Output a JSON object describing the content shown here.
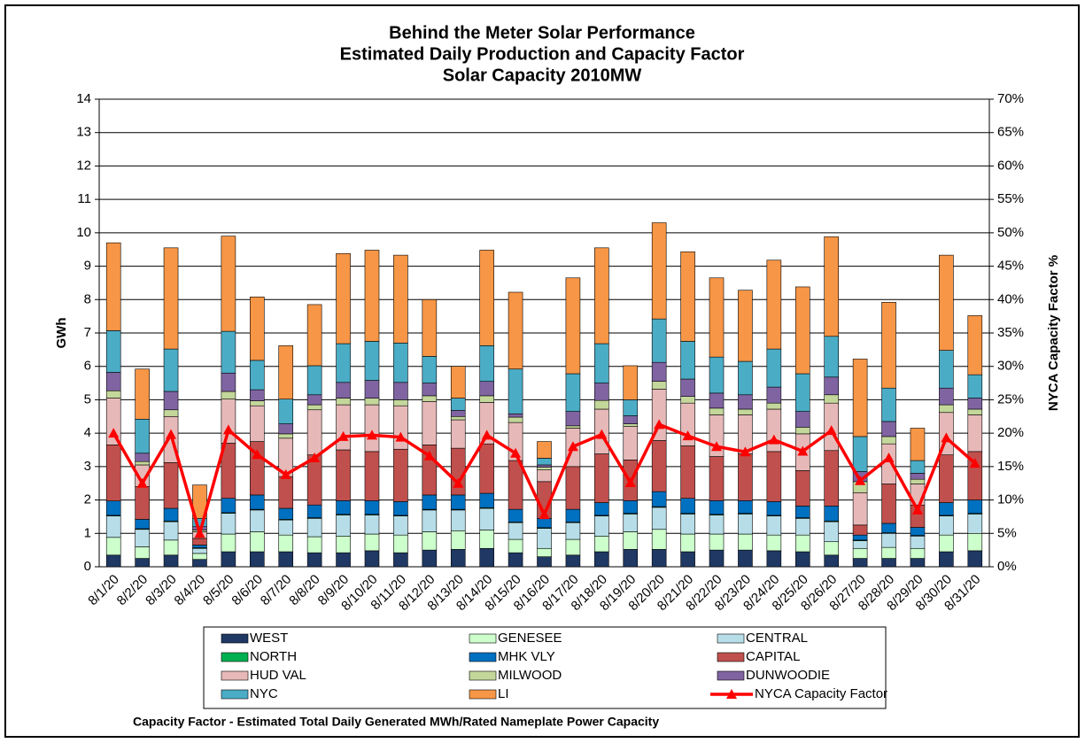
{
  "chart_data": {
    "type": "stacked_bar_line",
    "title": [
      "Behind the Meter Solar Performance",
      "Estimated Daily Production and Capacity Factor",
      "Solar Capacity 2010MW"
    ],
    "y_label": "GWh",
    "y2_label": "NYCA Capacity Factor %",
    "footnote": "Capacity Factor  - Estimated Total Daily Generated MWh/Rated Nameplate Power Capacity",
    "categories": [
      "8/1/20",
      "8/2/20",
      "8/3/20",
      "8/4/20",
      "8/5/20",
      "8/6/20",
      "8/7/20",
      "8/8/20",
      "8/9/20",
      "8/10/20",
      "8/11/20",
      "8/12/20",
      "8/13/20",
      "8/14/20",
      "8/15/20",
      "8/16/20",
      "8/17/20",
      "8/18/20",
      "8/19/20",
      "8/20/20",
      "8/21/20",
      "8/22/20",
      "8/23/20",
      "8/24/20",
      "8/25/20",
      "8/26/20",
      "8/27/20",
      "8/28/20",
      "8/29/20",
      "8/30/20",
      "8/31/20"
    ],
    "ylim": [
      0,
      14
    ],
    "yticks": [
      0,
      1,
      2,
      3,
      4,
      5,
      6,
      7,
      8,
      9,
      10,
      11,
      12,
      13,
      14
    ],
    "y2lim": [
      0,
      70
    ],
    "y2ticks": [
      {
        "value": 0,
        "label": "0%"
      },
      {
        "value": 5,
        "label": "5%"
      },
      {
        "value": 10,
        "label": "10%"
      },
      {
        "value": 15,
        "label": "15%"
      },
      {
        "value": 20,
        "label": "20%"
      },
      {
        "value": 25,
        "label": "25%"
      },
      {
        "value": 30,
        "label": "30%"
      },
      {
        "value": 35,
        "label": "35%"
      },
      {
        "value": 40,
        "label": "40%"
      },
      {
        "value": 45,
        "label": "45%"
      },
      {
        "value": 50,
        "label": "50%"
      },
      {
        "value": 55,
        "label": "55%"
      },
      {
        "value": 60,
        "label": "60%"
      },
      {
        "value": 65,
        "label": "65%"
      },
      {
        "value": 70,
        "label": "70%"
      }
    ],
    "grid": true,
    "series": [
      {
        "name": "WEST",
        "color": "#1f3864",
        "values": [
          0.35,
          0.25,
          0.35,
          0.22,
          0.45,
          0.45,
          0.45,
          0.42,
          0.42,
          0.48,
          0.42,
          0.5,
          0.52,
          0.55,
          0.42,
          0.3,
          0.35,
          0.45,
          0.52,
          0.52,
          0.45,
          0.5,
          0.5,
          0.48,
          0.45,
          0.35,
          0.25,
          0.25,
          0.25,
          0.45,
          0.48
        ]
      },
      {
        "name": "GENESEE",
        "color": "#ccffcc",
        "values": [
          0.53,
          0.35,
          0.45,
          0.18,
          0.53,
          0.6,
          0.5,
          0.48,
          0.5,
          0.5,
          0.53,
          0.55,
          0.56,
          0.55,
          0.4,
          0.25,
          0.47,
          0.47,
          0.53,
          0.6,
          0.53,
          0.48,
          0.48,
          0.47,
          0.5,
          0.4,
          0.3,
          0.33,
          0.3,
          0.5,
          0.52
        ]
      },
      {
        "name": "CENTRAL",
        "color": "#b7dee8",
        "values": [
          0.64,
          0.52,
          0.55,
          0.15,
          0.62,
          0.65,
          0.45,
          0.55,
          0.63,
          0.57,
          0.57,
          0.65,
          0.62,
          0.65,
          0.5,
          0.6,
          0.5,
          0.6,
          0.53,
          0.66,
          0.6,
          0.57,
          0.6,
          0.57,
          0.5,
          0.6,
          0.23,
          0.42,
          0.37,
          0.57,
          0.58
        ]
      },
      {
        "name": "NORTH",
        "color": "#00b050",
        "values": [
          0.02,
          0.02,
          0.02,
          0.02,
          0.02,
          0.02,
          0.02,
          0.02,
          0.02,
          0.02,
          0.02,
          0.02,
          0.02,
          0.02,
          0.02,
          0.02,
          0.02,
          0.02,
          0.02,
          0.02,
          0.02,
          0.02,
          0.02,
          0.02,
          0.02,
          0.02,
          0.02,
          0.02,
          0.02,
          0.02,
          0.02
        ]
      },
      {
        "name": "MHK VLY",
        "color": "#0070c0",
        "values": [
          0.43,
          0.28,
          0.38,
          0.08,
          0.43,
          0.43,
          0.33,
          0.38,
          0.41,
          0.41,
          0.41,
          0.43,
          0.43,
          0.43,
          0.38,
          0.28,
          0.38,
          0.38,
          0.38,
          0.45,
          0.45,
          0.41,
          0.38,
          0.41,
          0.35,
          0.45,
          0.15,
          0.28,
          0.24,
          0.38,
          0.4
        ]
      },
      {
        "name": "CAPITAL",
        "color": "#c0504d",
        "values": [
          1.68,
          0.98,
          1.37,
          0.2,
          1.65,
          1.6,
          0.95,
          1.5,
          1.52,
          1.47,
          1.57,
          1.5,
          1.4,
          1.48,
          1.46,
          1.1,
          1.28,
          1.46,
          1.22,
          1.53,
          1.57,
          1.32,
          1.4,
          1.5,
          1.06,
          1.66,
          0.3,
          1.18,
          0.67,
          1.43,
          1.45
        ]
      },
      {
        "name": "HUD VAL",
        "color": "#e6b9b8",
        "values": [
          1.4,
          0.65,
          1.38,
          0.2,
          1.32,
          1.07,
          1.15,
          1.35,
          1.35,
          1.4,
          1.3,
          1.3,
          0.85,
          1.24,
          1.14,
          0.35,
          1.15,
          1.34,
          1.0,
          1.54,
          1.28,
          1.25,
          1.17,
          1.27,
          1.1,
          1.42,
          0.97,
          1.2,
          0.63,
          1.27,
          1.1
        ]
      },
      {
        "name": "MILWOOD",
        "color": "#c4d79b",
        "values": [
          0.22,
          0.1,
          0.2,
          0.05,
          0.23,
          0.15,
          0.13,
          0.15,
          0.2,
          0.2,
          0.18,
          0.17,
          0.1,
          0.2,
          0.16,
          0.08,
          0.07,
          0.26,
          0.08,
          0.23,
          0.2,
          0.2,
          0.17,
          0.18,
          0.2,
          0.25,
          0.33,
          0.22,
          0.14,
          0.23,
          0.17
        ]
      },
      {
        "name": "DUNWOODIE",
        "color": "#8064a2",
        "values": [
          0.55,
          0.25,
          0.55,
          0.1,
          0.55,
          0.33,
          0.3,
          0.3,
          0.47,
          0.53,
          0.52,
          0.38,
          0.18,
          0.43,
          0.1,
          0.07,
          0.43,
          0.52,
          0.24,
          0.57,
          0.52,
          0.45,
          0.43,
          0.48,
          0.47,
          0.53,
          0.3,
          0.45,
          0.18,
          0.5,
          0.33
        ]
      },
      {
        "name": "NYC",
        "color": "#4bacc6",
        "values": [
          1.25,
          1.02,
          1.27,
          0.25,
          1.25,
          0.88,
          0.74,
          0.87,
          1.16,
          1.17,
          1.18,
          0.8,
          0.37,
          1.07,
          1.34,
          0.2,
          1.13,
          1.18,
          0.48,
          1.3,
          1.13,
          1.08,
          1.0,
          1.14,
          1.13,
          1.22,
          1.05,
          1.0,
          0.38,
          1.13,
          0.7
        ]
      },
      {
        "name": "LI",
        "color": "#f79646",
        "values": [
          2.63,
          1.5,
          3.03,
          1.0,
          2.85,
          1.9,
          1.6,
          1.83,
          2.7,
          2.73,
          2.63,
          1.7,
          0.95,
          2.86,
          2.3,
          0.5,
          2.87,
          2.87,
          1.02,
          2.88,
          2.68,
          2.37,
          2.13,
          2.66,
          2.6,
          2.98,
          2.32,
          2.57,
          0.97,
          2.85,
          1.77
        ]
      },
      {
        "name": "NYCA Capacity Factor",
        "color": "#ff0000",
        "axis": "y2",
        "values": [
          20,
          12.5,
          19.8,
          5,
          20.5,
          16.8,
          13.8,
          16.3,
          19.5,
          19.7,
          19.4,
          16.6,
          12.5,
          19.7,
          17,
          7.8,
          18,
          19.8,
          12.6,
          21.3,
          19.6,
          18,
          17.2,
          19,
          17.3,
          20.4,
          12.9,
          16.3,
          8.5,
          19.3,
          15.5
        ]
      }
    ]
  }
}
